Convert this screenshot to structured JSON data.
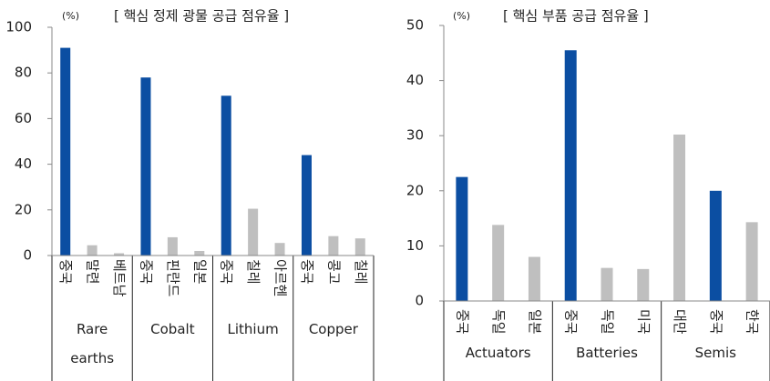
{
  "chart_data": [
    {
      "type": "bar",
      "title": "[ 핵심 정제 광물 공급 점유율 ]",
      "y_label": "(%)",
      "ylim": [
        0,
        100
      ],
      "yticks": [
        0,
        20,
        40,
        60,
        80,
        100
      ],
      "groups": [
        {
          "name": "Rare earths",
          "categories": [
            "중국",
            "말련",
            "베트남"
          ],
          "values": [
            91,
            4.5,
            1
          ],
          "colors": [
            "#0b4ea2",
            "#bfbfbf",
            "#bfbfbf"
          ]
        },
        {
          "name": "Cobalt",
          "categories": [
            "중국",
            "핀란드",
            "일본"
          ],
          "values": [
            78,
            8,
            2
          ],
          "colors": [
            "#0b4ea2",
            "#bfbfbf",
            "#bfbfbf"
          ]
        },
        {
          "name": "Lithium",
          "categories": [
            "중국",
            "칠레",
            "아르헨"
          ],
          "values": [
            70,
            20.5,
            5.5
          ],
          "colors": [
            "#0b4ea2",
            "#bfbfbf",
            "#bfbfbf"
          ]
        },
        {
          "name": "Copper",
          "categories": [
            "중국",
            "콩고",
            "칠레"
          ],
          "values": [
            44,
            8.5,
            7.5
          ],
          "colors": [
            "#0b4ea2",
            "#bfbfbf",
            "#bfbfbf"
          ]
        }
      ]
    },
    {
      "type": "bar",
      "title": "[ 핵심 부품 공급 점유율 ]",
      "y_label": "(%)",
      "ylim": [
        0,
        50
      ],
      "yticks": [
        0,
        10,
        20,
        30,
        40,
        50
      ],
      "groups": [
        {
          "name": "Actuators",
          "categories": [
            "중국",
            "독일",
            "일본"
          ],
          "values": [
            22.5,
            13.8,
            8
          ],
          "colors": [
            "#0b4ea2",
            "#bfbfbf",
            "#bfbfbf"
          ]
        },
        {
          "name": "Batteries",
          "categories": [
            "중국",
            "독일",
            "미국"
          ],
          "values": [
            45.5,
            6,
            5.8
          ],
          "colors": [
            "#0b4ea2",
            "#bfbfbf",
            "#bfbfbf"
          ]
        },
        {
          "name": "Semis",
          "categories": [
            "대만",
            "중국",
            "한국"
          ],
          "values": [
            30.2,
            20,
            14.3
          ],
          "colors": [
            "#bfbfbf",
            "#0b4ea2",
            "#bfbfbf"
          ]
        }
      ]
    }
  ]
}
